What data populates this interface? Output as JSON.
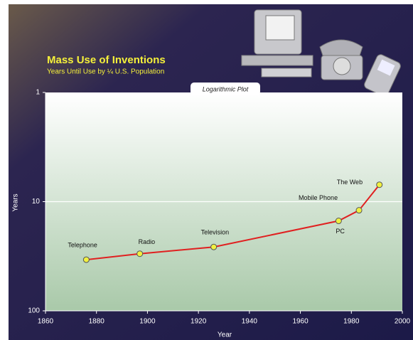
{
  "chart_data": {
    "type": "line",
    "title": "Mass Use of Inventions",
    "subtitle": "Years Until Use by ¼ U.S. Population",
    "annotation": "Logarithmic Plot",
    "x_label": "Year",
    "y_label": "Years",
    "x": [
      1876,
      1897,
      1926,
      1975,
      1983,
      1991
    ],
    "series": [
      {
        "color": "#e02020",
        "values": [
          34,
          30,
          26,
          15,
          12,
          7
        ]
      }
    ],
    "point_labels": [
      "Telephone",
      "Radio",
      "Television",
      "PC",
      "Mobile Phone",
      "The Web"
    ],
    "marker_color": "#f0f040",
    "xlim": [
      1860,
      2000
    ],
    "xticks": [
      1860,
      1880,
      1900,
      1920,
      1940,
      1960,
      1980,
      2000
    ],
    "ylim": [
      1,
      100
    ],
    "yticks": [
      1,
      10,
      100
    ],
    "yscale": "log",
    "yinvert": true,
    "grid": true
  }
}
